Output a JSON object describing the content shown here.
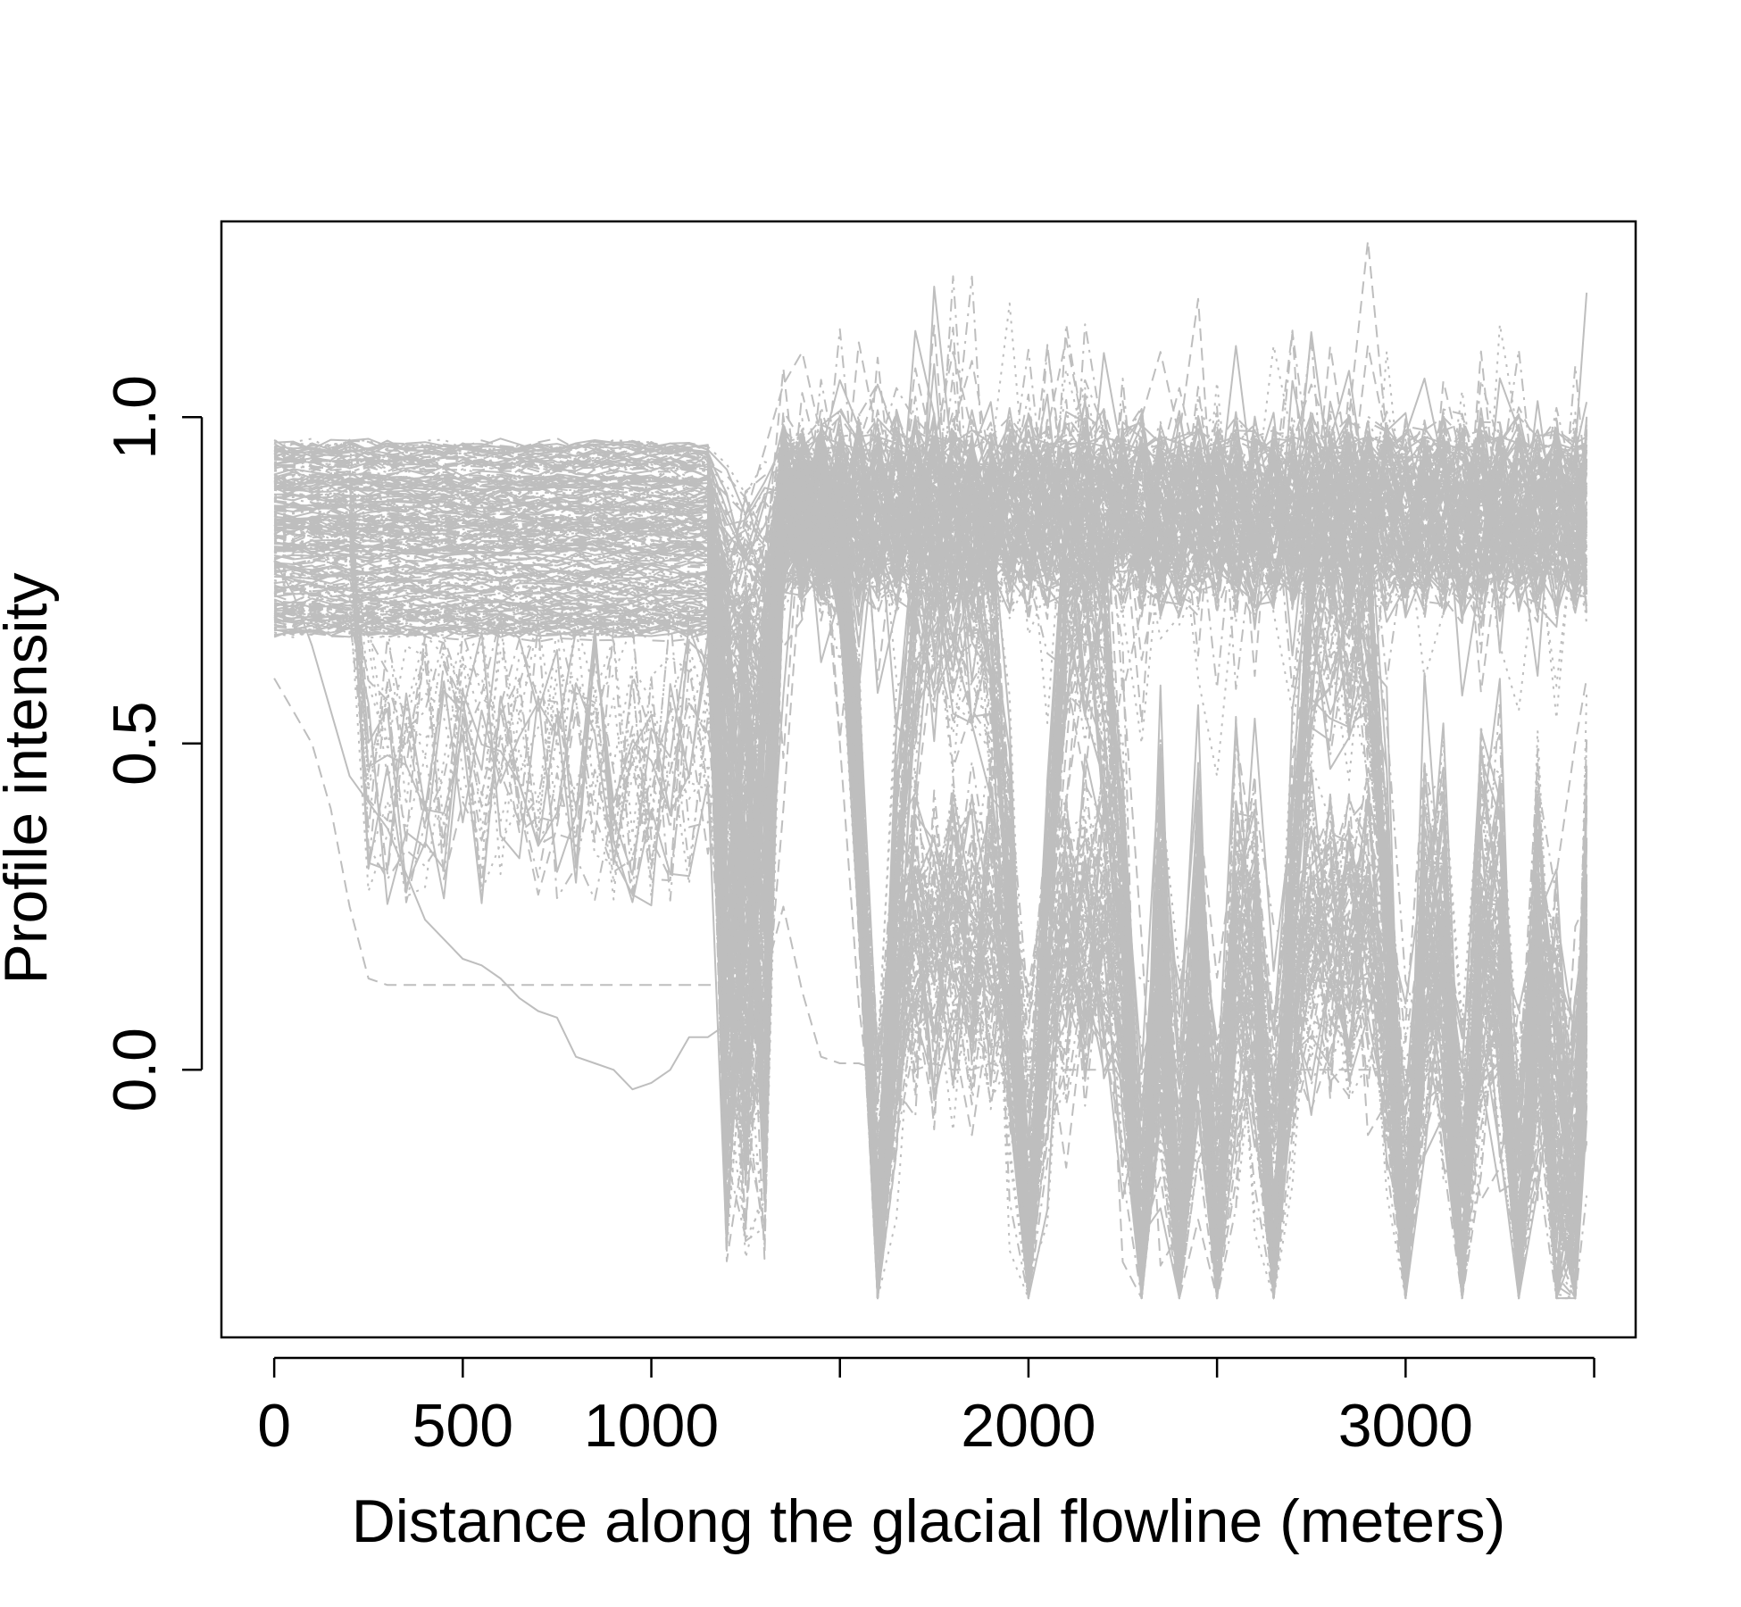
{
  "chart_data": {
    "type": "line",
    "title": "",
    "xlabel": "Distance along the glacial flowline (meters)",
    "ylabel": "Profile intensity",
    "xlim": [
      -140,
      3610
    ],
    "ylim": [
      -0.41,
      1.3
    ],
    "x_ticks": [
      0,
      500,
      1000,
      1500,
      2000,
      2500,
      3000,
      3500
    ],
    "x_tick_labels": [
      "0",
      "500",
      "1000",
      "",
      "2000",
      "",
      "3000",
      ""
    ],
    "y_ticks": [
      0.0,
      0.5,
      1.0
    ],
    "y_tick_labels": [
      "0.0",
      "0.5",
      "1.0"
    ],
    "grid": false,
    "legend": "none",
    "line_color": "#bebebe",
    "line_styles": [
      "solid",
      "dashed",
      "dotted",
      "dotdash"
    ],
    "n_profiles": 260,
    "x": [
      0,
      50,
      100,
      150,
      200,
      250,
      300,
      350,
      400,
      450,
      500,
      550,
      600,
      650,
      700,
      750,
      800,
      850,
      900,
      950,
      1000,
      1050,
      1100,
      1150,
      1200,
      1250,
      1300,
      1350,
      1400,
      1450,
      1500,
      1550,
      1600,
      1650,
      1700,
      1750,
      1800,
      1850,
      1900,
      1950,
      2000,
      2050,
      2100,
      2150,
      2200,
      2250,
      2300,
      2350,
      2400,
      2450,
      2500,
      2550,
      2600,
      2650,
      2700,
      2750,
      2800,
      2850,
      2900,
      2950,
      3000,
      3050,
      3100,
      3150,
      3200,
      3250,
      3300,
      3350,
      3400,
      3450,
      3480
    ],
    "series": [
      {
        "style": "solid",
        "values": [
          0.95,
          0.94,
          0.96,
          0.95,
          0.93,
          0.95,
          0.96,
          0.94,
          0.95,
          0.94,
          0.96,
          0.95,
          0.94,
          0.95,
          0.96,
          0.95,
          0.94,
          0.95,
          0.96,
          0.95,
          0.94,
          0.95,
          0.96,
          0.95,
          0.92,
          0.85,
          0.9,
          0.96,
          0.95,
          0.97,
          0.96,
          0.95,
          0.97,
          0.96,
          0.95,
          0.97,
          0.96,
          0.98,
          0.96,
          0.95,
          0.97,
          0.96,
          0.95,
          0.96,
          0.97,
          0.96,
          0.95,
          0.97,
          0.96,
          0.95,
          0.96,
          0.97,
          0.96,
          0.95,
          0.97,
          0.96,
          0.95,
          0.96,
          0.97,
          0.96,
          0.95,
          0.97,
          0.96,
          0.95,
          0.96,
          0.97,
          0.96,
          0.95,
          0.96,
          0.95,
          0.96
        ]
      },
      {
        "style": "dashed",
        "values": [
          0.7,
          0.69,
          0.71,
          0.7,
          0.68,
          0.7,
          0.71,
          0.69,
          0.7,
          0.68,
          0.7,
          0.71,
          0.69,
          0.7,
          0.71,
          0.7,
          0.69,
          0.7,
          0.71,
          0.7,
          0.69,
          0.7,
          0.71,
          0.7,
          0.65,
          0.1,
          0.05,
          0.4,
          0.8,
          0.85,
          0.5,
          0.1,
          -0.15,
          -0.1,
          0.1,
          0.2,
          0.05,
          -0.1,
          0.1,
          0.3,
          -0.05,
          0.05,
          -0.15,
          0.1,
          0.4,
          0.6,
          0.2,
          -0.3,
          -0.25,
          0.05,
          -0.05,
          -0.1,
          0.0,
          -0.2,
          0.0,
          0.2,
          0.1,
          0.35,
          -0.1,
          -0.05,
          0.0,
          -0.1,
          0.0,
          -0.05,
          -0.2,
          -0.15,
          0.1,
          -0.2,
          0.3,
          0.5,
          0.6
        ]
      },
      {
        "style": "dotted",
        "values": [
          0.82,
          0.81,
          0.83,
          0.82,
          0.8,
          0.82,
          0.83,
          0.81,
          0.82,
          0.8,
          0.82,
          0.83,
          0.81,
          0.82,
          0.83,
          0.82,
          0.81,
          0.82,
          0.83,
          0.82,
          0.81,
          0.82,
          0.83,
          0.82,
          0.8,
          0.65,
          0.7,
          0.92,
          0.9,
          0.88,
          0.92,
          0.85,
          0.9,
          0.6,
          0.5,
          0.75,
          0.85,
          0.7,
          0.55,
          0.9,
          0.92,
          0.8,
          0.6,
          0.85,
          0.9,
          0.7,
          0.5,
          0.8,
          0.85,
          0.6,
          0.45,
          0.75,
          0.9,
          0.7,
          0.55,
          0.85,
          0.9,
          0.65,
          0.5,
          0.8,
          0.85,
          0.6,
          0.7,
          0.9,
          0.85,
          0.65,
          0.55,
          0.8,
          0.88,
          0.75,
          0.7
        ]
      },
      {
        "style": "solid",
        "values": [
          0.78,
          0.73,
          0.65,
          0.55,
          0.45,
          0.41,
          0.37,
          0.3,
          0.23,
          0.2,
          0.17,
          0.16,
          0.14,
          0.11,
          0.09,
          0.08,
          0.02,
          0.01,
          0.0,
          -0.03,
          -0.02,
          0.0,
          0.05,
          0.05,
          0.07,
          0.2,
          0.6,
          0.85,
          0.9,
          0.92,
          0.88,
          0.9,
          0.92,
          0.9,
          0.88,
          0.9,
          0.92,
          0.9,
          0.88,
          0.9,
          0.92,
          0.9,
          0.88,
          0.9,
          0.92,
          0.9,
          0.88,
          0.9,
          0.92,
          0.9,
          0.88,
          0.9,
          0.92,
          0.9,
          0.88,
          0.9,
          0.92,
          0.9,
          0.88,
          0.9,
          0.92,
          0.9,
          0.88,
          0.9,
          0.92,
          0.9,
          0.88,
          0.9,
          0.92,
          0.9,
          0.88
        ]
      },
      {
        "style": "dashed",
        "values": [
          0.6,
          0.55,
          0.5,
          0.4,
          0.25,
          0.14,
          0.13,
          0.13,
          0.13,
          0.13,
          0.13,
          0.13,
          0.13,
          0.13,
          0.13,
          0.13,
          0.13,
          0.13,
          0.13,
          0.13,
          0.13,
          0.13,
          0.13,
          0.13,
          0.13,
          0.12,
          0.14,
          0.25,
          0.12,
          0.02,
          0.01,
          0.01,
          0.0,
          0.0,
          0.0,
          0.01,
          0.0,
          0.0,
          0.01,
          0.0,
          0.0,
          0.0,
          0.0,
          0.0,
          0.0,
          0.0,
          0.0,
          0.0,
          0.0,
          0.0,
          0.0,
          0.0,
          0.0,
          0.0,
          0.0,
          0.0,
          0.0,
          0.0,
          0.0,
          0.0,
          0.0,
          0.0,
          0.0,
          0.0,
          0.0,
          0.0,
          0.0,
          0.0,
          0.0,
          0.0,
          0.0
        ]
      },
      {
        "style": "dashed",
        "values": [
          0.9,
          0.92,
          0.9,
          0.91,
          0.9,
          0.92,
          0.9,
          0.91,
          0.9,
          0.92,
          0.9,
          0.91,
          0.9,
          0.92,
          0.9,
          0.91,
          0.9,
          0.92,
          0.9,
          0.91,
          0.9,
          0.92,
          0.9,
          0.91,
          0.88,
          0.85,
          0.95,
          1.05,
          1.1,
          0.97,
          1.0,
          0.96,
          1.05,
          0.97,
          0.98,
          0.96,
          1.1,
          0.98,
          0.97,
          1.0,
          0.96,
          0.98,
          1.12,
          0.97,
          0.98,
          0.96,
          1.0,
          1.1,
          0.97,
          0.98,
          0.96,
          1.0,
          0.97,
          0.98,
          0.96,
          1.05,
          0.97,
          1.0,
          1.27,
          0.97,
          0.96,
          0.98,
          1.0,
          0.97,
          0.98,
          0.96,
          1.0,
          0.97,
          0.98,
          0.96,
          0.97
        ]
      }
    ]
  }
}
